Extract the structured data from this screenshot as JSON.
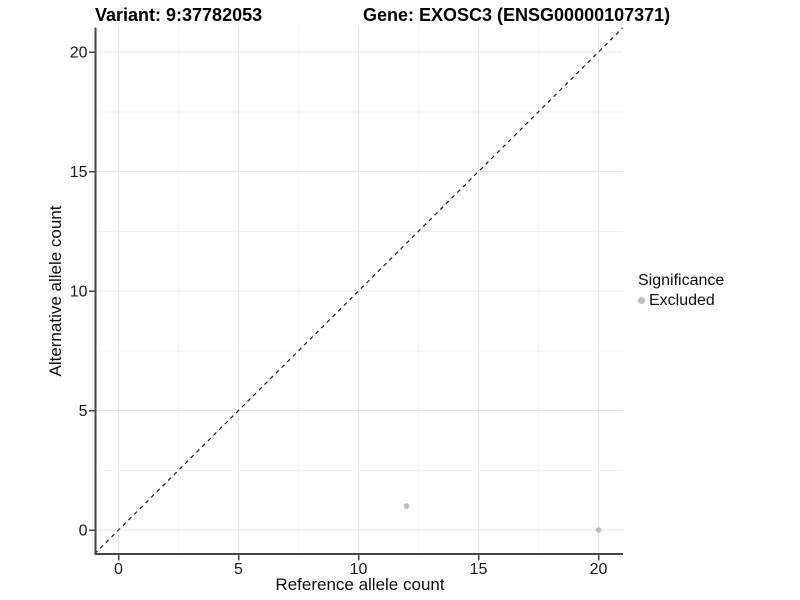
{
  "titles": {
    "variant": "Variant: 9:37782053",
    "gene": "Gene: EXOSC3 (ENSG00000107371)"
  },
  "axis": {
    "x_title": "Reference allele count",
    "y_title": "Alternative allele count"
  },
  "legend": {
    "title": "Significance",
    "items": [
      {
        "label": "Excluded",
        "color": "#bdbdbd"
      }
    ]
  },
  "colors": {
    "grid_major": "#e5e5e5",
    "grid_minor": "#f2f2f2",
    "axis_line": "#464646",
    "tick_mark": "#464646",
    "tick_label": "#1a1a1a",
    "identity_line": "#1a1a1a",
    "point": "#bdbdbd"
  },
  "chart_data": {
    "type": "scatter",
    "title": "Variant: 9:37782053   Gene: EXOSC3 (ENSG00000107371)",
    "xlabel": "Reference allele count",
    "ylabel": "Alternative allele count",
    "xlim": [
      -1,
      21
    ],
    "ylim": [
      -1,
      21
    ],
    "x_major_ticks": [
      0,
      5,
      10,
      15,
      20
    ],
    "y_major_ticks": [
      0,
      5,
      10,
      15,
      20
    ],
    "x_minor_ticks": [
      2.5,
      7.5,
      12.5,
      17.5
    ],
    "y_minor_ticks": [
      2.5,
      7.5,
      12.5,
      17.5
    ],
    "grid": "major+minor",
    "legend_position": "right",
    "series": [
      {
        "name": "Excluded",
        "color": "#bdbdbd",
        "points": [
          {
            "x": 12,
            "y": 1
          },
          {
            "x": 20,
            "y": 0
          }
        ]
      }
    ],
    "reference_line": {
      "type": "identity",
      "style": "dashed",
      "from": [
        -1,
        -1
      ],
      "to": [
        21,
        21
      ]
    }
  }
}
